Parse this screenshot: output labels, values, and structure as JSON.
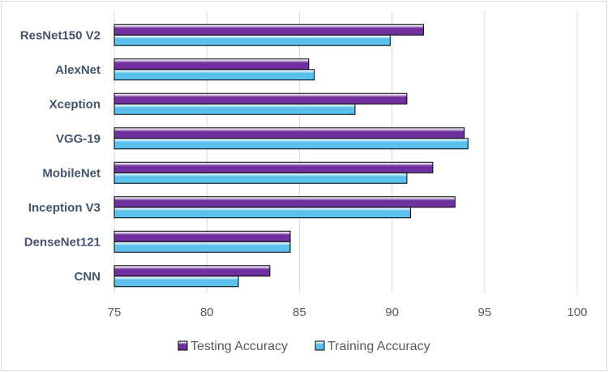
{
  "chart_data": {
    "type": "bar",
    "orientation": "horizontal",
    "categories": [
      "ResNet150 V2",
      "AlexNet",
      "Xception",
      "VGG-19",
      "MobileNet",
      "Inception V3",
      "DenseNet121",
      "CNN"
    ],
    "series": [
      {
        "name": "Testing Accuracy",
        "color": "#7030a0",
        "values": [
          91.7,
          85.5,
          90.8,
          93.9,
          92.2,
          93.4,
          84.5,
          83.4
        ]
      },
      {
        "name": "Training Accuracy",
        "color": "#5bc0eb",
        "values": [
          89.9,
          85.8,
          88.0,
          94.1,
          90.8,
          91.0,
          84.5,
          81.7
        ]
      }
    ],
    "xlim": [
      75,
      100
    ],
    "xticks": [
      "75",
      "80",
      "85",
      "90",
      "95",
      "100"
    ],
    "grid": "vertical",
    "legend_position": "bottom",
    "title": "",
    "xlabel": "",
    "ylabel": ""
  }
}
